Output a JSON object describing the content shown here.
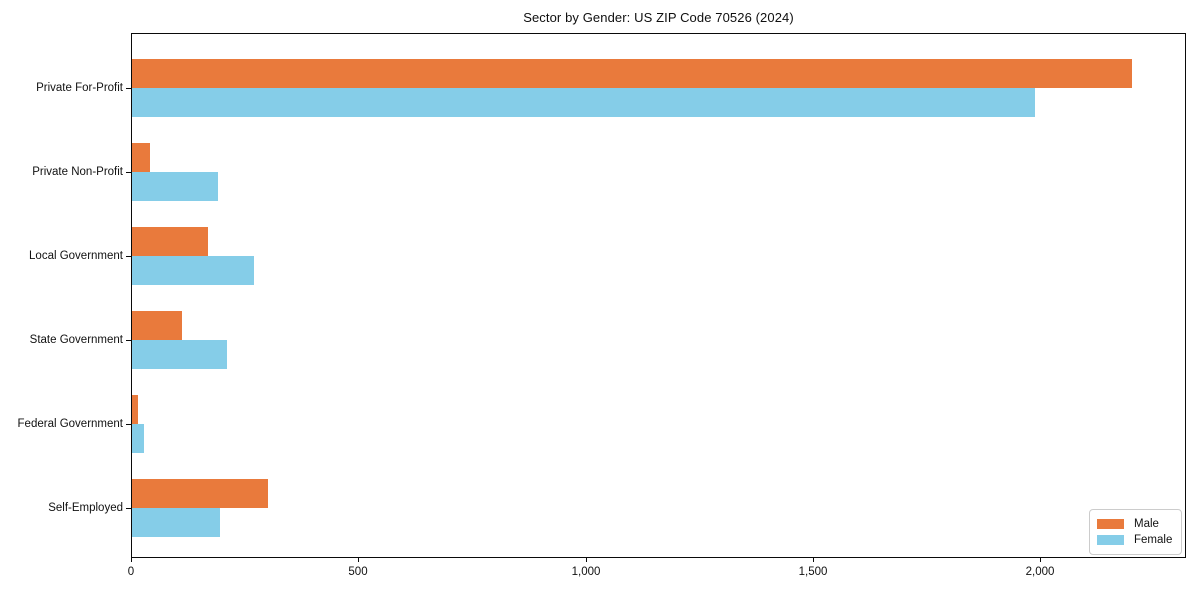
{
  "chart_data": {
    "type": "bar",
    "orientation": "horizontal",
    "title": "Sector by Gender: US ZIP Code 70526 (2024)",
    "categories": [
      "Private For-Profit",
      "Private Non-Profit",
      "Local Government",
      "State Government",
      "Federal Government",
      "Self-Employed"
    ],
    "series": [
      {
        "name": "Male",
        "color": "#e97a3c",
        "values": [
          2200,
          40,
          168,
          110,
          14,
          298
        ]
      },
      {
        "name": "Female",
        "color": "#85cde8",
        "values": [
          1985,
          190,
          268,
          209,
          27,
          194
        ]
      }
    ],
    "xlabel": "",
    "ylabel": "",
    "xlim": [
      0,
      2320
    ],
    "x_ticks": [
      {
        "value": 0,
        "label": "0"
      },
      {
        "value": 500,
        "label": "500"
      },
      {
        "value": 1000,
        "label": "1,000"
      },
      {
        "value": 1500,
        "label": "1,500"
      },
      {
        "value": 2000,
        "label": "2,000"
      }
    ],
    "grid": false,
    "legend_position": "lower right",
    "axis_color": "#0a0a0a",
    "background_color": "#ffffff"
  }
}
